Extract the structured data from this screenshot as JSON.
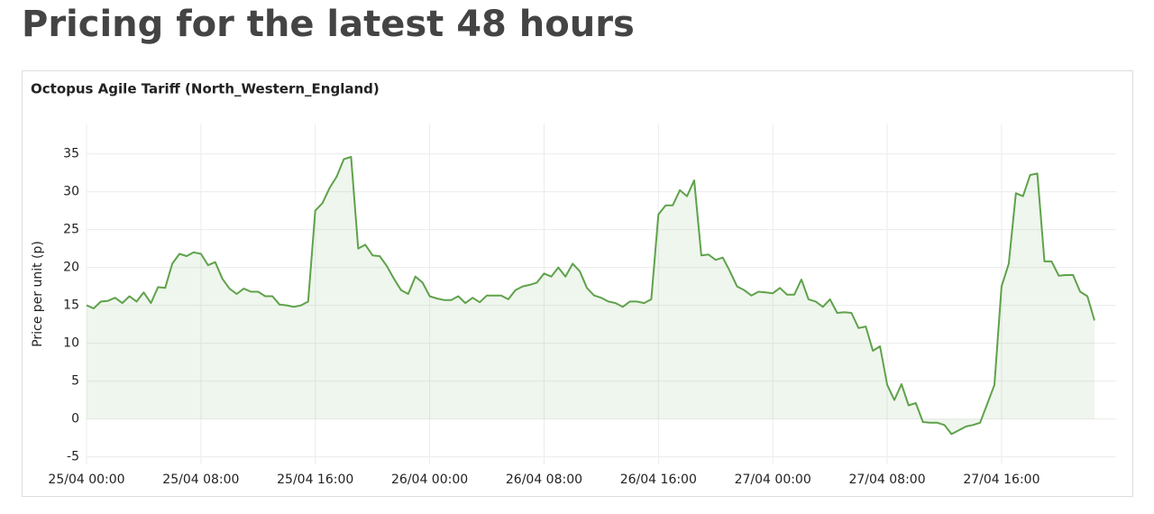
{
  "heading": "Pricing for the latest 48 hours",
  "chart_data": {
    "type": "area",
    "title": "Octopus Agile Tariff (North_Western_England)",
    "ylabel": "Price per unit (p)",
    "color": "#5fa24b",
    "grid": true,
    "x": [
      "25/04 00:00",
      "25/04 00:30",
      "25/04 01:00",
      "25/04 01:30",
      "25/04 02:00",
      "25/04 02:30",
      "25/04 03:00",
      "25/04 03:30",
      "25/04 04:00",
      "25/04 04:30",
      "25/04 05:00",
      "25/04 05:30",
      "25/04 06:00",
      "25/04 06:30",
      "25/04 07:00",
      "25/04 07:30",
      "25/04 08:00",
      "25/04 08:30",
      "25/04 09:00",
      "25/04 09:30",
      "25/04 10:00",
      "25/04 10:30",
      "25/04 11:00",
      "25/04 11:30",
      "25/04 12:00",
      "25/04 12:30",
      "25/04 13:00",
      "25/04 13:30",
      "25/04 14:00",
      "25/04 14:30",
      "25/04 15:00",
      "25/04 15:30",
      "25/04 16:00",
      "25/04 16:30",
      "25/04 17:00",
      "25/04 17:30",
      "25/04 18:00",
      "25/04 18:30",
      "25/04 19:00",
      "25/04 19:30",
      "25/04 20:00",
      "25/04 20:30",
      "25/04 21:00",
      "25/04 21:30",
      "25/04 22:00",
      "25/04 22:30",
      "25/04 23:00",
      "25/04 23:30",
      "26/04 00:00",
      "26/04 00:30",
      "26/04 01:00",
      "26/04 01:30",
      "26/04 02:00",
      "26/04 02:30",
      "26/04 03:00",
      "26/04 03:30",
      "26/04 04:00",
      "26/04 04:30",
      "26/04 05:00",
      "26/04 05:30",
      "26/04 06:00",
      "26/04 06:30",
      "26/04 07:00",
      "26/04 07:30",
      "26/04 08:00",
      "26/04 08:30",
      "26/04 09:00",
      "26/04 09:30",
      "26/04 10:00",
      "26/04 10:30",
      "26/04 11:00",
      "26/04 11:30",
      "26/04 12:00",
      "26/04 12:30",
      "26/04 13:00",
      "26/04 13:30",
      "26/04 14:00",
      "26/04 14:30",
      "26/04 15:00",
      "26/04 15:30",
      "26/04 16:00",
      "26/04 16:30",
      "26/04 17:00",
      "26/04 17:30",
      "26/04 18:00",
      "26/04 18:30",
      "26/04 19:00",
      "26/04 19:30",
      "26/04 20:00",
      "26/04 20:30",
      "26/04 21:00",
      "26/04 21:30",
      "26/04 22:00",
      "26/04 22:30",
      "26/04 23:00",
      "26/04 23:30",
      "27/04 00:00",
      "27/04 00:30",
      "27/04 01:00",
      "27/04 01:30",
      "27/04 02:00",
      "27/04 02:30",
      "27/04 03:00",
      "27/04 03:30",
      "27/04 04:00",
      "27/04 04:30",
      "27/04 05:00",
      "27/04 05:30",
      "27/04 06:00",
      "27/04 06:30",
      "27/04 07:00",
      "27/04 07:30",
      "27/04 08:00",
      "27/04 08:30",
      "27/04 09:00",
      "27/04 09:30",
      "27/04 10:00",
      "27/04 10:30",
      "27/04 11:00",
      "27/04 11:30",
      "27/04 12:00",
      "27/04 12:30",
      "27/04 13:00",
      "27/04 13:30",
      "27/04 14:00",
      "27/04 14:30",
      "27/04 15:00",
      "27/04 15:30",
      "27/04 16:00",
      "27/04 16:30",
      "27/04 17:00",
      "27/04 17:30",
      "27/04 18:00",
      "27/04 18:30",
      "27/04 19:00",
      "27/04 19:30",
      "27/04 20:00",
      "27/04 20:30",
      "27/04 21:00",
      "27/04 21:30",
      "27/04 22:00",
      "27/04 22:30"
    ],
    "values": [
      15,
      14.6,
      15.5,
      15.6,
      16,
      15.3,
      16.2,
      15.5,
      16.7,
      15.3,
      17.4,
      17.3,
      20.5,
      21.8,
      21.5,
      22,
      21.8,
      20.3,
      20.7,
      18.5,
      17.2,
      16.5,
      17.2,
      16.8,
      16.8,
      16.2,
      16.2,
      15.1,
      15,
      14.8,
      15,
      15.5,
      27.5,
      28.5,
      30.5,
      32,
      34.3,
      34.6,
      22.5,
      23,
      21.6,
      21.5,
      20.2,
      18.5,
      17,
      16.5,
      18.8,
      18,
      16.2,
      15.9,
      15.7,
      15.7,
      16.2,
      15.3,
      16,
      15.4,
      16.3,
      16.3,
      16.3,
      15.8,
      17,
      17.5,
      17.7,
      18,
      19.2,
      18.8,
      20,
      18.8,
      20.5,
      19.5,
      17.3,
      16.3,
      16,
      15.5,
      15.3,
      14.8,
      15.5,
      15.5,
      15.3,
      15.8,
      27,
      28.2,
      28.2,
      30.2,
      29.4,
      31.5,
      21.6,
      21.7,
      21,
      21.3,
      19.5,
      17.5,
      17,
      16.3,
      16.8,
      16.7,
      16.6,
      17.3,
      16.4,
      16.4,
      18.4,
      15.8,
      15.5,
      14.8,
      15.8,
      14,
      14.1,
      14,
      12,
      12.2,
      9,
      9.6,
      4.5,
      2.5,
      4.6,
      1.8,
      2.1,
      -0.4,
      -0.5,
      -0.5,
      -0.8,
      -2,
      -1.5,
      -1,
      -0.8,
      -0.5,
      2,
      4.5,
      17.5,
      20.5,
      29.8,
      29.4,
      32.2,
      32.4,
      20.8,
      20.8,
      18.9,
      19,
      19,
      16.8,
      16.2,
      13
    ],
    "xticks": [
      "25/04 00:00",
      "25/04 08:00",
      "25/04 16:00",
      "26/04 00:00",
      "26/04 08:00",
      "26/04 16:00",
      "27/04 00:00",
      "27/04 08:00",
      "27/04 16:00"
    ],
    "ylim": [
      -6,
      39
    ],
    "yticks": [
      -5,
      0,
      5,
      10,
      15,
      20,
      25,
      30,
      35
    ]
  }
}
